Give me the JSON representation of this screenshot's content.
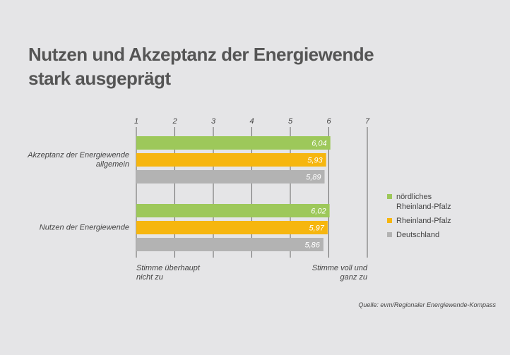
{
  "chart_data": {
    "type": "bar",
    "orientation": "horizontal",
    "title": [
      "Nutzen und Akzeptanz der Energiewende",
      "stark ausgeprägt"
    ],
    "categories": [
      "Akzeptanz der Energiewende allgemein",
      "Nutzen der Energiewende"
    ],
    "series": [
      {
        "name": "nördliches Rheinland-Pfalz",
        "color": "#9dc85a",
        "values": [
          6.04,
          6.02
        ],
        "value_labels": [
          "6,04",
          "6,02"
        ]
      },
      {
        "name": "Rheinland-Pfalz",
        "color": "#f6b60f",
        "values": [
          5.93,
          5.97
        ],
        "value_labels": [
          "5,93",
          "5,97"
        ]
      },
      {
        "name": "Deutschland",
        "color": "#b3b3b3",
        "values": [
          5.89,
          5.86
        ],
        "value_labels": [
          "5,89",
          "5,86"
        ]
      }
    ],
    "xlim": [
      1,
      7
    ],
    "xticks": [
      1,
      2,
      3,
      4,
      5,
      6,
      7
    ],
    "grid": true,
    "legend": "right",
    "annotations": [
      "Stimme überhaupt nicht zu",
      "Stimme voll und ganz zu"
    ],
    "source": "Quelle: evm/Regionaler Energiewende-Kompass"
  }
}
